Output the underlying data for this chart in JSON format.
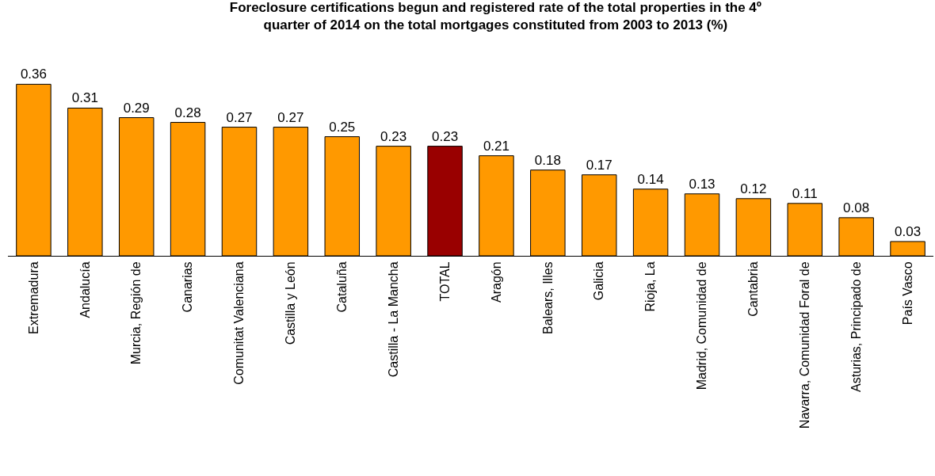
{
  "chart_data": {
    "type": "bar",
    "title": "Foreclosure certifications begun and registered rate of the total properties in the 4º quarter of 2014 on the total mortgages constituted from 2003 to 2013 (%)",
    "categories": [
      "Extremadura",
      "Andalucía",
      "Murcia, Región de",
      "Canarias",
      "Comunitat Valenciana",
      "Castilla y León",
      "Cataluña",
      "Castilla - La Mancha",
      "TOTAL",
      "Aragón",
      "Balears, Illes",
      "Galicia",
      "Rioja, La",
      "Madrid, Comunidad de",
      "Cantabria",
      "Navarra, Comunidad Foral de",
      "Asturias, Principado de",
      "País Vasco"
    ],
    "values": [
      0.36,
      0.31,
      0.29,
      0.28,
      0.27,
      0.27,
      0.25,
      0.23,
      0.23,
      0.21,
      0.18,
      0.17,
      0.14,
      0.13,
      0.12,
      0.11,
      0.08,
      0.03
    ],
    "colors": [
      "#ff9900",
      "#ff9900",
      "#ff9900",
      "#ff9900",
      "#ff9900",
      "#ff9900",
      "#ff9900",
      "#ff9900",
      "#990000",
      "#ff9900",
      "#ff9900",
      "#ff9900",
      "#ff9900",
      "#ff9900",
      "#ff9900",
      "#ff9900",
      "#ff9900",
      "#ff9900"
    ],
    "data_labels": true
  }
}
